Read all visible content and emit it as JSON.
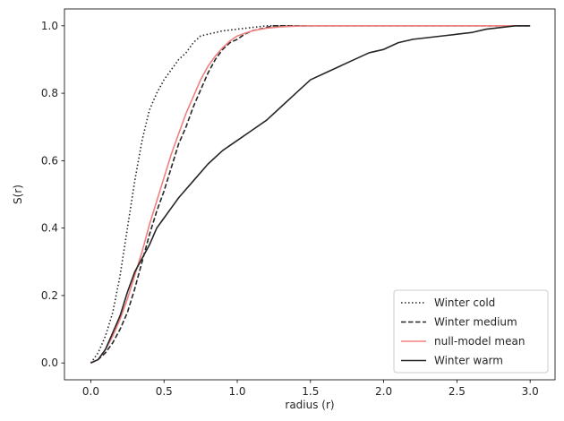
{
  "chart_data": {
    "type": "line",
    "xlabel": "radius (r)",
    "ylabel": "S(r)",
    "xlim": [
      -0.18,
      3.17
    ],
    "ylim": [
      -0.05,
      1.05
    ],
    "xticks": [
      0.0,
      0.5,
      1.0,
      1.5,
      2.0,
      2.5,
      3.0
    ],
    "xtick_labels": [
      "0.0",
      "0.5",
      "1.0",
      "1.5",
      "2.0",
      "2.5",
      "3.0"
    ],
    "yticks": [
      0.0,
      0.2,
      0.4,
      0.6,
      0.8,
      1.0
    ],
    "ytick_labels": [
      "0.0",
      "0.2",
      "0.4",
      "0.6",
      "0.8",
      "1.0"
    ],
    "grid": false,
    "legend_position": "lower-right",
    "series": [
      {
        "name": "Winter cold",
        "color": "#262626",
        "dash": "dotted",
        "x": [
          0.0,
          0.05,
          0.1,
          0.15,
          0.2,
          0.25,
          0.3,
          0.35,
          0.4,
          0.45,
          0.5,
          0.55,
          0.6,
          0.65,
          0.7,
          0.75,
          0.8,
          0.9,
          1.0,
          1.1,
          1.2,
          1.25,
          3.0
        ],
        "y": [
          0.0,
          0.03,
          0.08,
          0.15,
          0.26,
          0.4,
          0.54,
          0.66,
          0.75,
          0.8,
          0.84,
          0.87,
          0.9,
          0.92,
          0.95,
          0.97,
          0.975,
          0.985,
          0.99,
          0.995,
          1.0,
          1.0,
          1.0
        ]
      },
      {
        "name": "Winter medium",
        "color": "#262626",
        "dash": "dashed",
        "x": [
          0.0,
          0.05,
          0.1,
          0.15,
          0.2,
          0.25,
          0.3,
          0.35,
          0.4,
          0.45,
          0.5,
          0.55,
          0.6,
          0.65,
          0.7,
          0.75,
          0.8,
          0.85,
          0.9,
          0.95,
          1.0,
          1.05,
          1.1,
          1.15,
          1.2,
          1.25,
          3.0
        ],
        "y": [
          0.0,
          0.01,
          0.03,
          0.06,
          0.1,
          0.15,
          0.22,
          0.3,
          0.38,
          0.45,
          0.51,
          0.58,
          0.65,
          0.7,
          0.76,
          0.81,
          0.86,
          0.9,
          0.93,
          0.95,
          0.96,
          0.975,
          0.985,
          0.99,
          0.995,
          1.0,
          1.0
        ]
      },
      {
        "name": "null-model mean",
        "color": "#f08080",
        "dash": "solid",
        "x": [
          0.0,
          0.05,
          0.1,
          0.15,
          0.2,
          0.25,
          0.3,
          0.35,
          0.4,
          0.45,
          0.5,
          0.55,
          0.6,
          0.65,
          0.7,
          0.75,
          0.8,
          0.85,
          0.9,
          0.95,
          1.0,
          1.1,
          1.2,
          1.3,
          1.4,
          1.5,
          3.0
        ],
        "y": [
          0.0,
          0.01,
          0.04,
          0.08,
          0.13,
          0.19,
          0.26,
          0.33,
          0.41,
          0.48,
          0.55,
          0.62,
          0.68,
          0.74,
          0.79,
          0.84,
          0.88,
          0.91,
          0.935,
          0.955,
          0.97,
          0.985,
          0.993,
          0.997,
          0.999,
          1.0,
          1.0
        ]
      },
      {
        "name": "Winter warm",
        "color": "#262626",
        "dash": "solid",
        "x": [
          0.0,
          0.05,
          0.1,
          0.15,
          0.2,
          0.25,
          0.3,
          0.35,
          0.4,
          0.45,
          0.5,
          0.55,
          0.6,
          0.7,
          0.8,
          0.9,
          1.0,
          1.1,
          1.2,
          1.3,
          1.4,
          1.5,
          1.6,
          1.7,
          1.8,
          1.9,
          2.0,
          2.1,
          2.2,
          2.3,
          2.4,
          2.5,
          2.6,
          2.7,
          2.8,
          2.9,
          3.0
        ],
        "y": [
          0.0,
          0.01,
          0.04,
          0.09,
          0.14,
          0.21,
          0.27,
          0.31,
          0.35,
          0.4,
          0.43,
          0.46,
          0.49,
          0.54,
          0.59,
          0.63,
          0.66,
          0.69,
          0.72,
          0.76,
          0.8,
          0.84,
          0.86,
          0.88,
          0.9,
          0.92,
          0.93,
          0.95,
          0.96,
          0.965,
          0.97,
          0.975,
          0.98,
          0.99,
          0.995,
          1.0,
          1.0
        ]
      }
    ]
  }
}
